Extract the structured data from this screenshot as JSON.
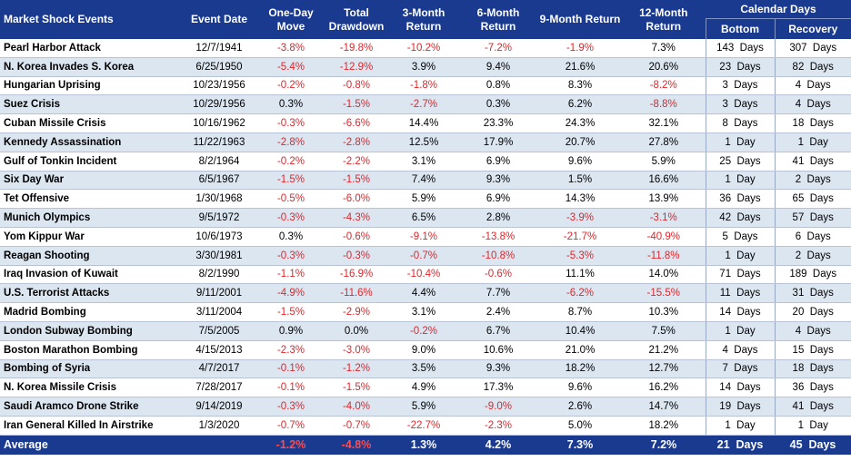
{
  "header": {
    "event": "Market Shock Events",
    "date": "Event Date",
    "one_day": "One-Day Move",
    "drawdown": "Total Drawdown",
    "m3": "3-Month Return",
    "m6": "6-Month Return",
    "m9": "9-Month Return",
    "m12": "12-Month Return",
    "calendar": "Calendar Days",
    "bottom": "Bottom",
    "recovery": "Recovery"
  },
  "rows": [
    {
      "event": "Pearl Harbor Attack",
      "date": "12/7/1941",
      "one_day": "-3.8%",
      "drawdown": "-19.8%",
      "m3": "-10.2%",
      "m6": "-7.2%",
      "m9": "-1.9%",
      "m12": "7.3%",
      "bottom": "143  Days",
      "recovery": "307  Days"
    },
    {
      "event": "N. Korea Invades S. Korea",
      "date": "6/25/1950",
      "one_day": "-5.4%",
      "drawdown": "-12.9%",
      "m3": "3.9%",
      "m6": "9.4%",
      "m9": "21.6%",
      "m12": "20.6%",
      "bottom": "23  Days",
      "recovery": "82  Days"
    },
    {
      "event": "Hungarian Uprising",
      "date": "10/23/1956",
      "one_day": "-0.2%",
      "drawdown": "-0.8%",
      "m3": "-1.8%",
      "m6": "0.8%",
      "m9": "8.3%",
      "m12": "-8.2%",
      "bottom": "3  Days",
      "recovery": "4  Days"
    },
    {
      "event": "Suez Crisis",
      "date": "10/29/1956",
      "one_day": "0.3%",
      "drawdown": "-1.5%",
      "m3": "-2.7%",
      "m6": "0.3%",
      "m9": "6.2%",
      "m12": "-8.8%",
      "bottom": "3  Days",
      "recovery": "4  Days"
    },
    {
      "event": "Cuban Missile Crisis",
      "date": "10/16/1962",
      "one_day": "-0.3%",
      "drawdown": "-6.6%",
      "m3": "14.4%",
      "m6": "23.3%",
      "m9": "24.3%",
      "m12": "32.1%",
      "bottom": "8  Days",
      "recovery": "18  Days"
    },
    {
      "event": "Kennedy Assassination",
      "date": "11/22/1963",
      "one_day": "-2.8%",
      "drawdown": "-2.8%",
      "m3": "12.5%",
      "m6": "17.9%",
      "m9": "20.7%",
      "m12": "27.8%",
      "bottom": "1  Day",
      "recovery": "1  Day"
    },
    {
      "event": "Gulf of Tonkin Incident",
      "date": "8/2/1964",
      "one_day": "-0.2%",
      "drawdown": "-2.2%",
      "m3": "3.1%",
      "m6": "6.9%",
      "m9": "9.6%",
      "m12": "5.9%",
      "bottom": "25  Days",
      "recovery": "41  Days"
    },
    {
      "event": "Six Day War",
      "date": "6/5/1967",
      "one_day": "-1.5%",
      "drawdown": "-1.5%",
      "m3": "7.4%",
      "m6": "9.3%",
      "m9": "1.5%",
      "m12": "16.6%",
      "bottom": "1  Day",
      "recovery": "2  Days"
    },
    {
      "event": "Tet Offensive",
      "date": "1/30/1968",
      "one_day": "-0.5%",
      "drawdown": "-6.0%",
      "m3": "5.9%",
      "m6": "6.9%",
      "m9": "14.3%",
      "m12": "13.9%",
      "bottom": "36  Days",
      "recovery": "65  Days"
    },
    {
      "event": "Munich Olympics",
      "date": "9/5/1972",
      "one_day": "-0.3%",
      "drawdown": "-4.3%",
      "m3": "6.5%",
      "m6": "2.8%",
      "m9": "-3.9%",
      "m12": "-3.1%",
      "bottom": "42  Days",
      "recovery": "57  Days"
    },
    {
      "event": "Yom Kippur War",
      "date": "10/6/1973",
      "one_day": "0.3%",
      "drawdown": "-0.6%",
      "m3": "-9.1%",
      "m6": "-13.8%",
      "m9": "-21.7%",
      "m12": "-40.9%",
      "bottom": "5  Days",
      "recovery": "6  Days"
    },
    {
      "event": "Reagan Shooting",
      "date": "3/30/1981",
      "one_day": "-0.3%",
      "drawdown": "-0.3%",
      "m3": "-0.7%",
      "m6": "-10.8%",
      "m9": "-5.3%",
      "m12": "-11.8%",
      "bottom": "1  Day",
      "recovery": "2  Days"
    },
    {
      "event": "Iraq Invasion of Kuwait",
      "date": "8/2/1990",
      "one_day": "-1.1%",
      "drawdown": "-16.9%",
      "m3": "-10.4%",
      "m6": "-0.6%",
      "m9": "11.1%",
      "m12": "14.0%",
      "bottom": "71  Days",
      "recovery": "189  Days"
    },
    {
      "event": "U.S. Terrorist Attacks",
      "date": "9/11/2001",
      "one_day": "-4.9%",
      "drawdown": "-11.6%",
      "m3": "4.4%",
      "m6": "7.7%",
      "m9": "-6.2%",
      "m12": "-15.5%",
      "bottom": "11  Days",
      "recovery": "31  Days"
    },
    {
      "event": "Madrid Bombing",
      "date": "3/11/2004",
      "one_day": "-1.5%",
      "drawdown": "-2.9%",
      "m3": "3.1%",
      "m6": "2.4%",
      "m9": "8.7%",
      "m12": "10.3%",
      "bottom": "14  Days",
      "recovery": "20  Days"
    },
    {
      "event": "London Subway Bombing",
      "date": "7/5/2005",
      "one_day": "0.9%",
      "drawdown": "0.0%",
      "m3": "-0.2%",
      "m6": "6.7%",
      "m9": "10.4%",
      "m12": "7.5%",
      "bottom": "1  Day",
      "recovery": "4  Days"
    },
    {
      "event": "Boston Marathon Bombing",
      "date": "4/15/2013",
      "one_day": "-2.3%",
      "drawdown": "-3.0%",
      "m3": "9.0%",
      "m6": "10.6%",
      "m9": "21.0%",
      "m12": "21.2%",
      "bottom": "4  Days",
      "recovery": "15  Days"
    },
    {
      "event": "Bombing of Syria",
      "date": "4/7/2017",
      "one_day": "-0.1%",
      "drawdown": "-1.2%",
      "m3": "3.5%",
      "m6": "9.3%",
      "m9": "18.2%",
      "m12": "12.7%",
      "bottom": "7  Days",
      "recovery": "18  Days"
    },
    {
      "event": "N. Korea Missile Crisis",
      "date": "7/28/2017",
      "one_day": "-0.1%",
      "drawdown": "-1.5%",
      "m3": "4.9%",
      "m6": "17.3%",
      "m9": "9.6%",
      "m12": "16.2%",
      "bottom": "14  Days",
      "recovery": "36  Days"
    },
    {
      "event": "Saudi Aramco Drone Strike",
      "date": "9/14/2019",
      "one_day": "-0.3%",
      "drawdown": "-4.0%",
      "m3": "5.9%",
      "m6": "-9.0%",
      "m9": "2.6%",
      "m12": "14.7%",
      "bottom": "19  Days",
      "recovery": "41  Days"
    },
    {
      "event": "Iran General Killed In Airstrike",
      "date": "1/3/2020",
      "one_day": "-0.7%",
      "drawdown": "-0.7%",
      "m3": "-22.7%",
      "m6": "-2.3%",
      "m9": "5.0%",
      "m12": "18.2%",
      "bottom": "1  Day",
      "recovery": "1  Day"
    }
  ],
  "average": {
    "label": "Average",
    "one_day": "-1.2%",
    "drawdown": "-4.8%",
    "m3": "1.3%",
    "m6": "4.2%",
    "m9": "7.3%",
    "m12": "7.2%",
    "bottom": "21  Days",
    "recovery": "45  Days"
  },
  "colors": {
    "header_bg": "#1a3a8f",
    "alt_row": "#dce6f1",
    "negative": "#e0262b"
  }
}
